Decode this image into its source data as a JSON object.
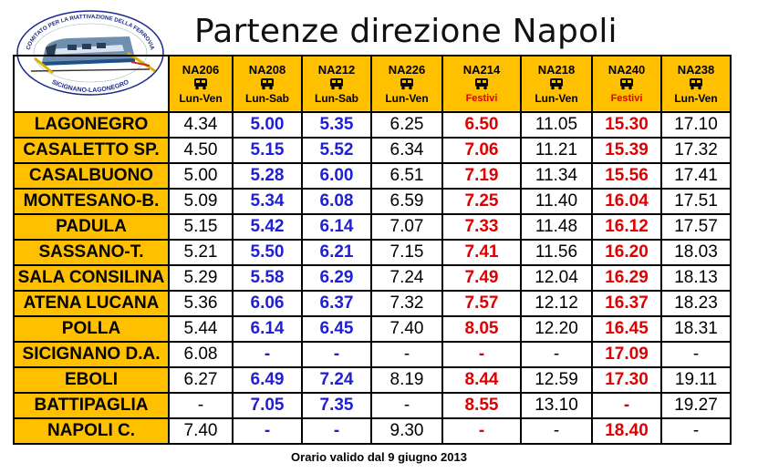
{
  "title": "Partenze direzione Napoli",
  "logo": {
    "text_top": "COMITATO PER LA RIATTIVAZIONE DELLA FERROVIA",
    "text_bottom": "SICIGNANO-LAGONEGRO"
  },
  "colors": {
    "header_bg": "#ffc000",
    "blue": "#1f1fd6",
    "red": "#e00000"
  },
  "trains": [
    {
      "code": "NA206",
      "days": "Lun-Ven",
      "icon": "bus-icon",
      "style": "normal"
    },
    {
      "code": "NA208",
      "days": "Lun-Sab",
      "icon": "bus-icon",
      "style": "blue"
    },
    {
      "code": "NA212",
      "days": "Lun-Sab",
      "icon": "bus-icon",
      "style": "blue"
    },
    {
      "code": "NA226",
      "days": "Lun-Ven",
      "icon": "bus-icon",
      "style": "normal"
    },
    {
      "code": "NA214",
      "days": "Festivi",
      "icon": "bus-icon",
      "style": "red"
    },
    {
      "code": "NA218",
      "days": "Lun-Ven",
      "icon": "bus-icon",
      "style": "normal"
    },
    {
      "code": "NA240",
      "days": "Festivi",
      "icon": "bus-icon",
      "style": "red"
    },
    {
      "code": "NA238",
      "days": "Lun-Ven",
      "icon": "bus-icon",
      "style": "normal"
    }
  ],
  "rows": [
    {
      "station": "LAGONEGRO",
      "times": [
        "4.34",
        "5.00",
        "5.35",
        "6.25",
        "6.50",
        "11.05",
        "15.30",
        "17.10"
      ]
    },
    {
      "station": "CASALETTO SP.",
      "times": [
        "4.50",
        "5.15",
        "5.52",
        "6.34",
        "7.06",
        "11.21",
        "15.39",
        "17.32"
      ]
    },
    {
      "station": "CASALBUONO",
      "times": [
        "5.00",
        "5.28",
        "6.00",
        "6.51",
        "7.19",
        "11.34",
        "15.56",
        "17.41"
      ]
    },
    {
      "station": "MONTESANO-B.",
      "times": [
        "5.09",
        "5.34",
        "6.08",
        "6.59",
        "7.25",
        "11.40",
        "16.04",
        "17.51"
      ]
    },
    {
      "station": "PADULA",
      "times": [
        "5.15",
        "5.42",
        "6.14",
        "7.07",
        "7.33",
        "11.48",
        "16.12",
        "17.57"
      ]
    },
    {
      "station": "SASSANO-T.",
      "times": [
        "5.21",
        "5.50",
        "6.21",
        "7.15",
        "7.41",
        "11.56",
        "16.20",
        "18.03"
      ]
    },
    {
      "station": "SALA CONSILINA",
      "times": [
        "5.29",
        "5.58",
        "6.29",
        "7.24",
        "7.49",
        "12.04",
        "16.29",
        "18.13"
      ]
    },
    {
      "station": "ATENA LUCANA",
      "times": [
        "5.36",
        "6.06",
        "6.37",
        "7.32",
        "7.57",
        "12.12",
        "16.37",
        "18.23"
      ]
    },
    {
      "station": "POLLA",
      "times": [
        "5.44",
        "6.14",
        "6.45",
        "7.40",
        "8.05",
        "12.20",
        "16.45",
        "18.31"
      ]
    },
    {
      "station": "SICIGNANO D.A.",
      "times": [
        "6.08",
        "-",
        "-",
        "-",
        "-",
        "-",
        "17.09",
        "-"
      ]
    },
    {
      "station": "EBOLI",
      "times": [
        "6.27",
        "6.49",
        "7.24",
        "8.19",
        "8.44",
        "12.59",
        "17.30",
        "19.11"
      ]
    },
    {
      "station": "BATTIPAGLIA",
      "times": [
        "-",
        "7.05",
        "7.35",
        "-",
        "8.55",
        "13.10",
        "-",
        "19.27"
      ]
    },
    {
      "station": "NAPOLI C.",
      "times": [
        "7.40",
        "-",
        "-",
        "9.30",
        "-",
        "-",
        "18.40",
        "-"
      ]
    }
  ],
  "footer": "Orario valido dal 9 giugno 2013"
}
